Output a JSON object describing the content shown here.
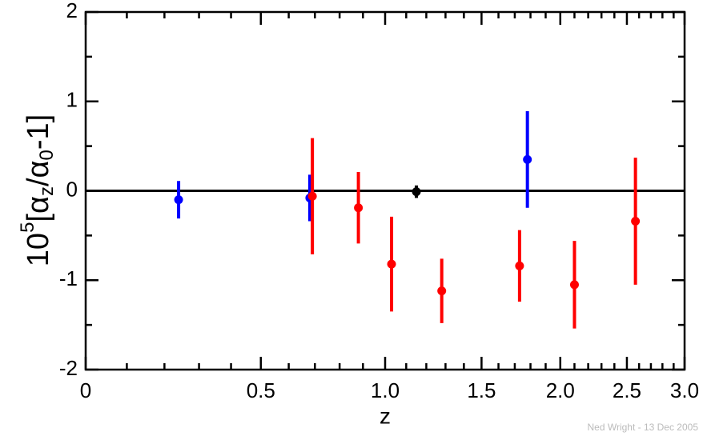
{
  "chart_data": {
    "type": "errorbar",
    "ylabel": [
      "10",
      "5",
      "[α",
      "z",
      "/α",
      "0",
      "-1]"
    ],
    "xlabel": "z",
    "annotation": "Ned Wright - 13 Dec 2005",
    "x_scale": "log1p",
    "xlim": [
      0,
      3
    ],
    "ylim": [
      -2,
      2
    ],
    "xticks": [
      0,
      0.5,
      {
        "value": 1,
        "label": "1.0"
      },
      1.5,
      {
        "value": 2,
        "label": "2.0"
      },
      2.5,
      {
        "value": 3,
        "label": "3.0"
      }
    ],
    "xminor_ticks": [
      0.1,
      0.2,
      0.3,
      0.4,
      0.6,
      0.7,
      0.8,
      0.9,
      1.1,
      1.2,
      1.3,
      1.4,
      1.6,
      1.7,
      1.8,
      1.9,
      2.1,
      2.2,
      2.3,
      2.4,
      2.6,
      2.7,
      2.8,
      2.9
    ],
    "yticks": [
      -2,
      -1,
      0,
      1,
      2
    ],
    "yminor_ticks": [
      -1.5,
      -0.5,
      0.5,
      1.5
    ],
    "reference_line": 0,
    "series": [
      {
        "color": "#0000ff",
        "x": [
          0.24,
          0.68,
          1.78
        ],
        "values": [
          -0.1,
          -0.08,
          0.35
        ],
        "errors": [
          0.21,
          0.26,
          0.54
        ]
      },
      {
        "color": "#ff0000",
        "x": [
          0.69,
          0.88,
          1.03,
          1.28,
          1.73,
          2.1,
          2.57
        ],
        "values": [
          -0.06,
          -0.19,
          -0.82,
          -1.12,
          -0.84,
          -1.05,
          -0.34
        ],
        "errors": [
          0.65,
          0.4,
          0.53,
          0.36,
          0.4,
          0.49,
          0.71
        ]
      },
      {
        "color": "#000000",
        "x": [
          1.15
        ],
        "values": [
          -0.01
        ],
        "errors": [
          0.07
        ]
      }
    ]
  }
}
